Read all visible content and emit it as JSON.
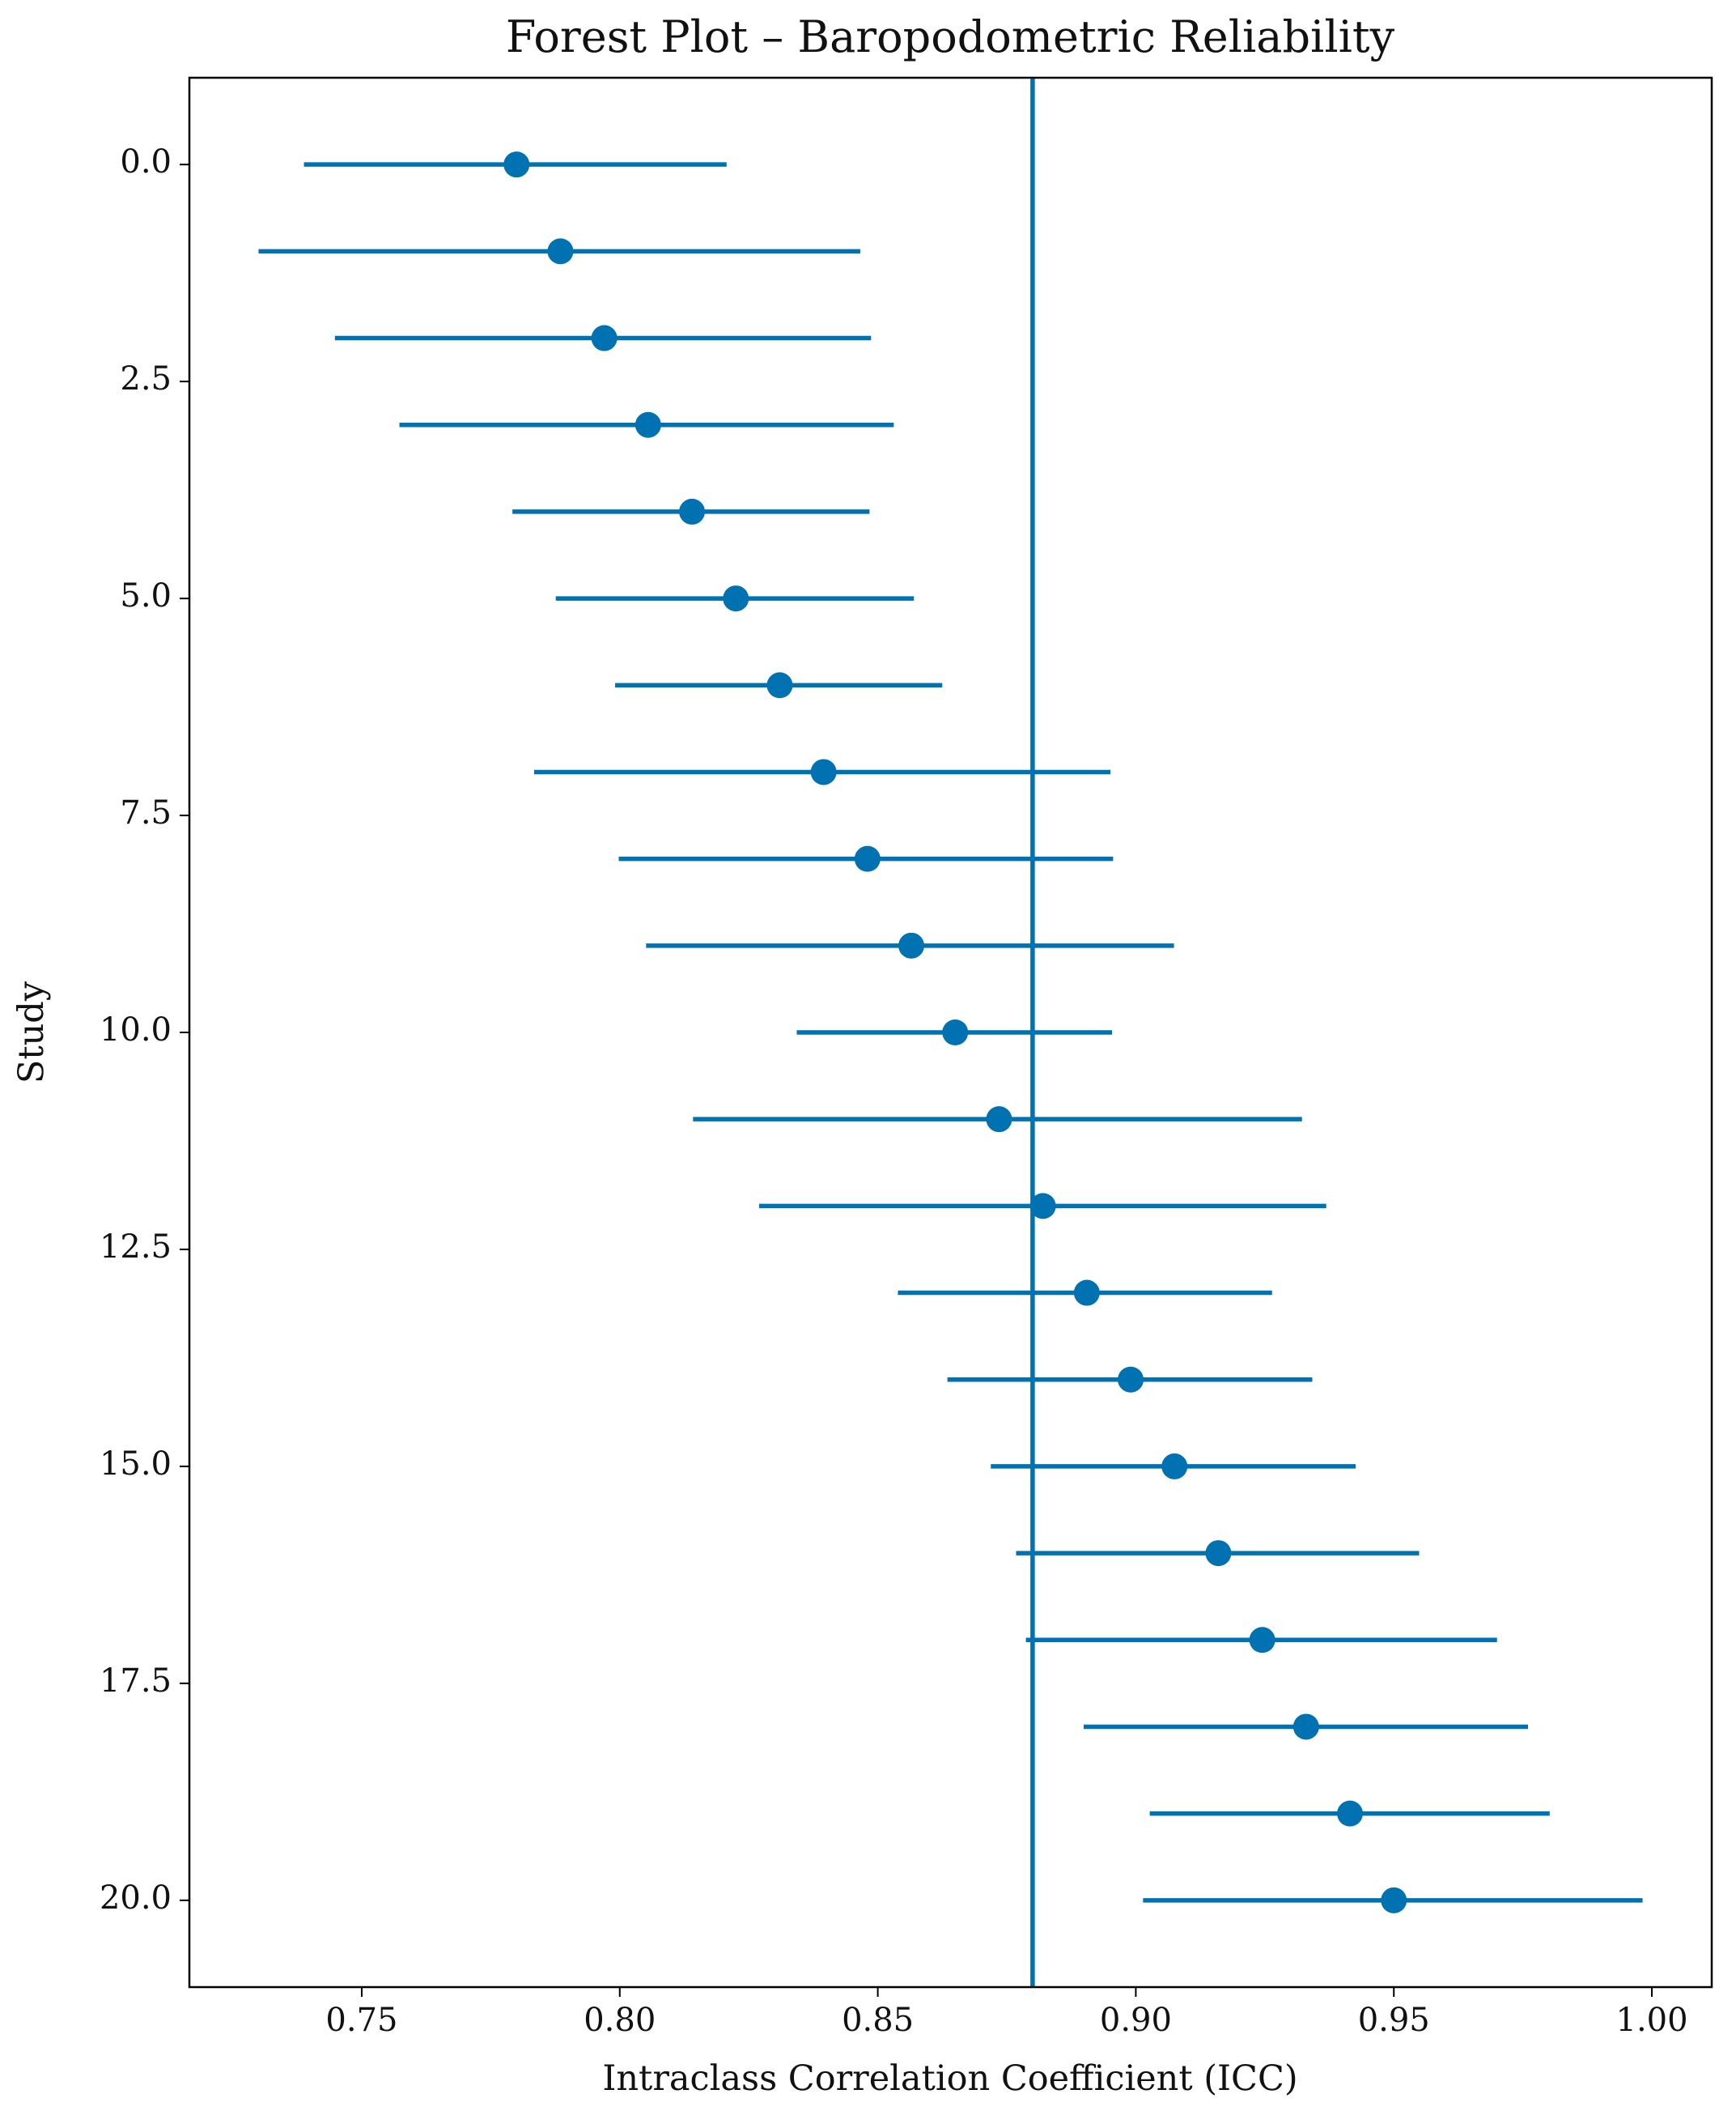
{
  "chart_data": {
    "type": "forest",
    "title": "Forest Plot – Baropodometric Reliability",
    "x_label": "Intraclass Correlation Coefficient (ICC)",
    "y_label": "Study",
    "color": "#0072b2",
    "y": [
      0,
      1,
      2,
      3,
      4,
      5,
      6,
      7,
      8,
      9,
      10,
      11,
      12,
      13,
      14,
      15,
      16,
      17,
      18,
      19,
      20
    ],
    "values": [
      0.78,
      0.7885,
      0.797,
      0.8055,
      0.814,
      0.8225,
      0.831,
      0.8395,
      0.848,
      0.8565,
      0.865,
      0.8735,
      0.882,
      0.8905,
      0.899,
      0.9075,
      0.916,
      0.9245,
      0.933,
      0.9415,
      0.95
    ],
    "lower": [
      0.7388,
      0.73,
      0.7448,
      0.7573,
      0.7792,
      0.7876,
      0.7991,
      0.7834,
      0.7998,
      0.8051,
      0.8343,
      0.8142,
      0.827,
      0.8539,
      0.8635,
      0.8719,
      0.8768,
      0.8787,
      0.8899,
      0.9027,
      0.9014
    ],
    "upper": [
      0.8207,
      0.8466,
      0.8487,
      0.8531,
      0.8484,
      0.857,
      0.8625,
      0.8951,
      0.8956,
      0.9074,
      0.8954,
      0.9322,
      0.9369,
      0.9264,
      0.9342,
      0.9426,
      0.9549,
      0.97,
      0.976,
      0.9802,
      0.9982
    ],
    "reference_line": 0.88,
    "xlim": [
      0.7166,
      1.0116
    ],
    "xticks": [
      0.75,
      {
        "value": 0.8,
        "label": "0.80"
      },
      0.85,
      {
        "value": 0.9,
        "label": "0.90"
      },
      0.95,
      {
        "value": 1.0,
        "label": "1.00"
      }
    ],
    "ylim": [
      -1,
      21
    ],
    "y_inverted": true,
    "yticks": [
      {
        "value": 0,
        "label": "0.0"
      },
      2.5,
      {
        "value": 5,
        "label": "5.0"
      },
      7.5,
      {
        "value": 10,
        "label": "10.0"
      },
      12.5,
      {
        "value": 15,
        "label": "15.0"
      },
      17.5,
      {
        "value": 20,
        "label": "20.0"
      }
    ]
  }
}
